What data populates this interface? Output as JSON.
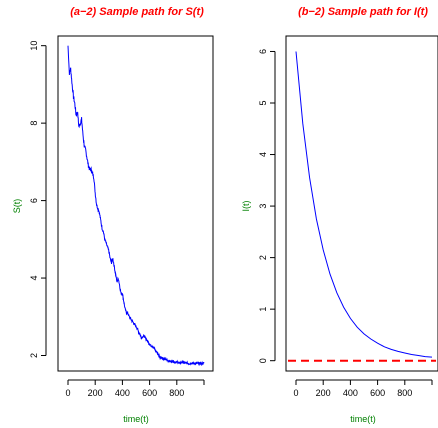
{
  "chart_data": [
    {
      "type": "line",
      "title": "(a−2) Sample path for S(t)",
      "xlabel": "time(t)",
      "ylabel": "S(t)",
      "xlim": [
        0,
        1000
      ],
      "ylim": [
        1.6,
        10.25
      ],
      "x_ticks": [
        "0",
        "200",
        "400",
        "600",
        "800"
      ],
      "x_tick_values": [
        0,
        200,
        400,
        600,
        800
      ],
      "y_ticks": [
        "2",
        "4",
        "6",
        "8",
        "10"
      ],
      "y_tick_values": [
        2,
        4,
        6,
        8,
        10
      ],
      "grid": false,
      "series_color": "#0000ff",
      "x": [
        0,
        10,
        20,
        30,
        40,
        50,
        60,
        70,
        80,
        90,
        100,
        110,
        120,
        130,
        140,
        150,
        160,
        170,
        180,
        190,
        200,
        210,
        220,
        230,
        240,
        250,
        260,
        270,
        280,
        290,
        300,
        310,
        320,
        330,
        340,
        350,
        360,
        370,
        380,
        390,
        400,
        410,
        420,
        430,
        440,
        450,
        460,
        470,
        480,
        490,
        500,
        510,
        520,
        530,
        540,
        550,
        560,
        570,
        580,
        590,
        600,
        610,
        620,
        630,
        640,
        650,
        660,
        670,
        680,
        690,
        700,
        710,
        720,
        730,
        740,
        750,
        760,
        770,
        780,
        790,
        800,
        810,
        820,
        830,
        840,
        850,
        860,
        870,
        880,
        890,
        900,
        910,
        920,
        930,
        940,
        950,
        960,
        970,
        980,
        990,
        1000
      ],
      "values": [
        10.0,
        9.3,
        9.4,
        9.0,
        8.7,
        8.5,
        8.2,
        8.3,
        7.9,
        8.0,
        8.1,
        7.7,
        7.4,
        7.3,
        7.1,
        6.9,
        6.8,
        6.8,
        6.7,
        6.6,
        6.2,
        5.9,
        5.8,
        5.7,
        5.5,
        5.3,
        5.2,
        5.0,
        4.9,
        4.8,
        4.7,
        4.5,
        4.4,
        4.5,
        4.3,
        4.1,
        3.9,
        4.0,
        3.8,
        3.6,
        3.6,
        3.4,
        3.2,
        3.1,
        3.1,
        3.0,
        2.95,
        2.9,
        2.85,
        2.8,
        2.75,
        2.7,
        2.6,
        2.55,
        2.45,
        2.5,
        2.5,
        2.45,
        2.4,
        2.35,
        2.3,
        2.25,
        2.25,
        2.2,
        2.15,
        2.1,
        2.05,
        2.0,
        1.95,
        1.95,
        1.9,
        1.9,
        1.9,
        1.88,
        1.86,
        1.85,
        1.85,
        1.86,
        1.84,
        1.82,
        1.83,
        1.82,
        1.8,
        1.82,
        1.83,
        1.82,
        1.8,
        1.81,
        1.8,
        1.79,
        1.8,
        1.81,
        1.8,
        1.79,
        1.8,
        1.8,
        1.79,
        1.8,
        1.79,
        1.8,
        1.8
      ]
    },
    {
      "type": "line",
      "title": "(b−2) Sample path for I(t)",
      "xlabel": "time(t)",
      "ylabel": "I(t)",
      "xlim": [
        0,
        1000
      ],
      "ylim": [
        -0.2,
        6.3
      ],
      "x_ticks": [
        "0",
        "200",
        "400",
        "600",
        "800"
      ],
      "x_tick_values": [
        0,
        200,
        400,
        600,
        800
      ],
      "y_ticks": [
        "0",
        "1",
        "2",
        "3",
        "4",
        "5",
        "6"
      ],
      "y_tick_values": [
        0,
        1,
        2,
        3,
        4,
        5,
        6
      ],
      "grid": false,
      "series_color": "#0000ff",
      "x": [
        0,
        50,
        100,
        150,
        200,
        250,
        300,
        350,
        400,
        450,
        500,
        550,
        600,
        650,
        700,
        750,
        800,
        850,
        900,
        950,
        1000
      ],
      "values": [
        6.0,
        4.6,
        3.55,
        2.75,
        2.15,
        1.68,
        1.32,
        1.04,
        0.82,
        0.65,
        0.52,
        0.42,
        0.34,
        0.27,
        0.22,
        0.18,
        0.15,
        0.12,
        0.1,
        0.08,
        0.07
      ],
      "reference_line": {
        "y": 0,
        "color": "#ff0000",
        "style": "dashed"
      }
    }
  ]
}
